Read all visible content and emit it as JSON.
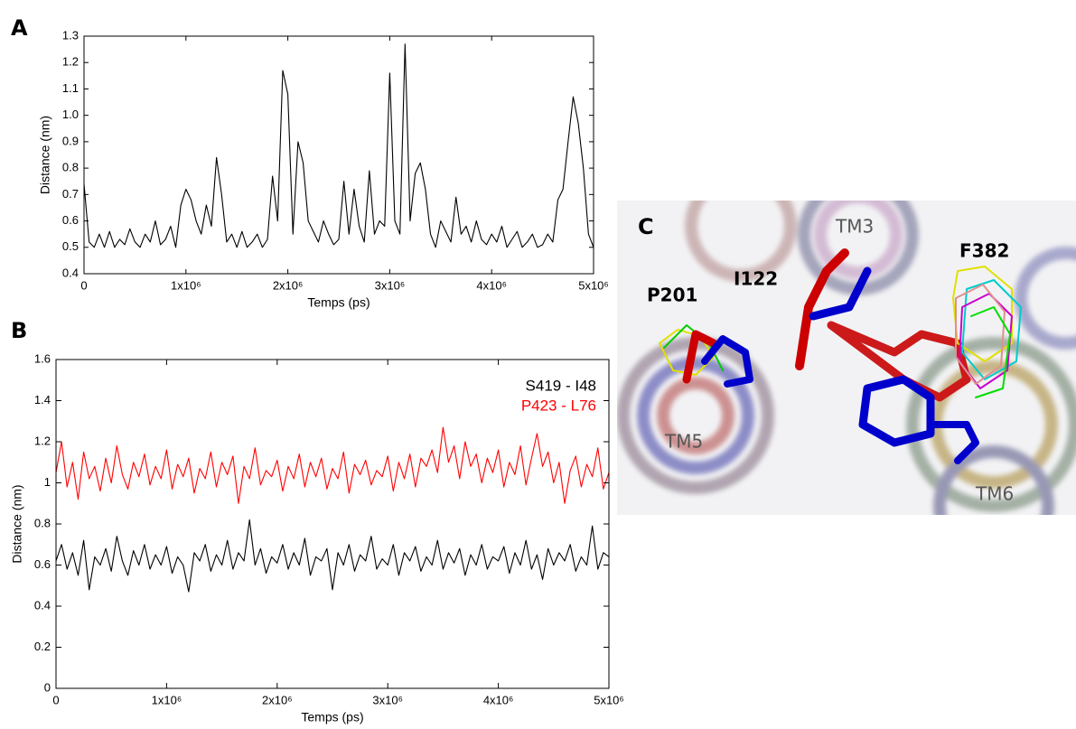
{
  "panel_labels": [
    "A",
    "B",
    "C"
  ],
  "structure": {
    "labels": [
      "TM3",
      "F382",
      "P201",
      "I122",
      "TM5",
      "TM6"
    ]
  },
  "chart_data": [
    {
      "type": "line",
      "xlabel": "Temps (ps)",
      "ylabel": "Distance (nm)",
      "xlim": [
        0,
        5000000
      ],
      "ylim": [
        0.4,
        1.3
      ],
      "xticks": [
        0,
        {
          "value": 1000000,
          "label": "1x10⁶"
        },
        {
          "value": 2000000,
          "label": "2x10⁶"
        },
        {
          "value": 3000000,
          "label": "3x10⁶"
        },
        {
          "value": 4000000,
          "label": "4x10⁶"
        },
        {
          "value": 5000000,
          "label": "5x10⁶"
        }
      ],
      "yticks": [
        0.4,
        0.5,
        0.6,
        0.7,
        0.8,
        0.9,
        {
          "value": 1,
          "label": "1.0"
        },
        1.1,
        1.2,
        1.3
      ],
      "x": [
        0,
        50000,
        100000,
        150000,
        200000,
        250000,
        300000,
        350000,
        400000,
        450000,
        500000,
        550000,
        600000,
        650000,
        700000,
        750000,
        800000,
        850000,
        900000,
        950000,
        1000000,
        1050000,
        1100000,
        1150000,
        1200000,
        1250000,
        1300000,
        1350000,
        1400000,
        1450000,
        1500000,
        1550000,
        1600000,
        1650000,
        1700000,
        1750000,
        1800000,
        1850000,
        1900000,
        1950000,
        2000000,
        2050000,
        2100000,
        2150000,
        2200000,
        2250000,
        2300000,
        2350000,
        2400000,
        2450000,
        2500000,
        2550000,
        2600000,
        2650000,
        2700000,
        2750000,
        2800000,
        2850000,
        2900000,
        2950000,
        3000000,
        3050000,
        3100000,
        3150000,
        3200000,
        3250000,
        3300000,
        3350000,
        3400000,
        3450000,
        3500000,
        3550000,
        3600000,
        3650000,
        3700000,
        3750000,
        3800000,
        3850000,
        3900000,
        3950000,
        4000000,
        4050000,
        4100000,
        4150000,
        4200000,
        4250000,
        4300000,
        4350000,
        4400000,
        4450000,
        4500000,
        4550000,
        4600000,
        4650000,
        4700000,
        4750000,
        4800000,
        4850000,
        4900000,
        4950000,
        5000000
      ],
      "series": [
        {
          "color": "#000000",
          "values": [
            0.74,
            0.52,
            0.5,
            0.55,
            0.5,
            0.56,
            0.5,
            0.53,
            0.51,
            0.57,
            0.52,
            0.5,
            0.55,
            0.52,
            0.6,
            0.51,
            0.53,
            0.58,
            0.5,
            0.66,
            0.72,
            0.68,
            0.6,
            0.55,
            0.66,
            0.58,
            0.84,
            0.7,
            0.52,
            0.55,
            0.5,
            0.56,
            0.5,
            0.52,
            0.55,
            0.5,
            0.53,
            0.77,
            0.6,
            1.17,
            1.08,
            0.55,
            0.9,
            0.82,
            0.6,
            0.56,
            0.52,
            0.6,
            0.55,
            0.51,
            0.53,
            0.75,
            0.55,
            0.72,
            0.58,
            0.52,
            0.79,
            0.55,
            0.6,
            0.58,
            1.16,
            0.6,
            0.55,
            1.27,
            0.6,
            0.78,
            0.82,
            0.72,
            0.55,
            0.5,
            0.6,
            0.56,
            0.52,
            0.69,
            0.55,
            0.58,
            0.52,
            0.6,
            0.53,
            0.51,
            0.55,
            0.52,
            0.58,
            0.5,
            0.53,
            0.56,
            0.5,
            0.52,
            0.55,
            0.5,
            0.51,
            0.55,
            0.52,
            0.68,
            0.72,
            0.9,
            1.07,
            0.97,
            0.8,
            0.55,
            0.5
          ]
        }
      ]
    },
    {
      "type": "line",
      "xlabel": "Temps (ps)",
      "ylabel": "Distance (nm)",
      "xlim": [
        0,
        5000000
      ],
      "ylim": [
        0,
        1.6
      ],
      "xticks": [
        0,
        {
          "value": 1000000,
          "label": "1x10⁶"
        },
        {
          "value": 2000000,
          "label": "2x10⁶"
        },
        {
          "value": 3000000,
          "label": "3x10⁶"
        },
        {
          "value": 4000000,
          "label": "4x10⁶"
        },
        {
          "value": 5000000,
          "label": "5x10⁶"
        }
      ],
      "yticks": [
        0,
        0.2,
        0.4,
        0.6,
        0.8,
        1,
        1.2,
        1.4,
        1.6
      ],
      "legend": "upper right",
      "x": [
        0,
        50000,
        100000,
        150000,
        200000,
        250000,
        300000,
        350000,
        400000,
        450000,
        500000,
        550000,
        600000,
        650000,
        700000,
        750000,
        800000,
        850000,
        900000,
        950000,
        1000000,
        1050000,
        1100000,
        1150000,
        1200000,
        1250000,
        1300000,
        1350000,
        1400000,
        1450000,
        1500000,
        1550000,
        1600000,
        1650000,
        1700000,
        1750000,
        1800000,
        1850000,
        1900000,
        1950000,
        2000000,
        2050000,
        2100000,
        2150000,
        2200000,
        2250000,
        2300000,
        2350000,
        2400000,
        2450000,
        2500000,
        2550000,
        2600000,
        2650000,
        2700000,
        2750000,
        2800000,
        2850000,
        2900000,
        2950000,
        3000000,
        3050000,
        3100000,
        3150000,
        3200000,
        3250000,
        3300000,
        3350000,
        3400000,
        3450000,
        3500000,
        3550000,
        3600000,
        3650000,
        3700000,
        3750000,
        3800000,
        3850000,
        3900000,
        3950000,
        4000000,
        4050000,
        4100000,
        4150000,
        4200000,
        4250000,
        4300000,
        4350000,
        4400000,
        4450000,
        4500000,
        4550000,
        4600000,
        4650000,
        4700000,
        4750000,
        4800000,
        4850000,
        4900000,
        4950000,
        5000000
      ],
      "series": [
        {
          "name": "S419 - I48",
          "color": "#000000",
          "values": [
            0.62,
            0.7,
            0.58,
            0.66,
            0.55,
            0.72,
            0.48,
            0.64,
            0.6,
            0.68,
            0.57,
            0.74,
            0.62,
            0.55,
            0.67,
            0.6,
            0.7,
            0.58,
            0.65,
            0.6,
            0.69,
            0.56,
            0.64,
            0.6,
            0.47,
            0.66,
            0.62,
            0.7,
            0.57,
            0.65,
            0.6,
            0.72,
            0.58,
            0.66,
            0.62,
            0.82,
            0.6,
            0.68,
            0.56,
            0.64,
            0.61,
            0.7,
            0.58,
            0.66,
            0.6,
            0.73,
            0.55,
            0.64,
            0.62,
            0.68,
            0.48,
            0.66,
            0.6,
            0.7,
            0.57,
            0.65,
            0.62,
            0.74,
            0.58,
            0.63,
            0.6,
            0.7,
            0.55,
            0.66,
            0.62,
            0.69,
            0.57,
            0.64,
            0.6,
            0.72,
            0.58,
            0.66,
            0.61,
            0.68,
            0.55,
            0.65,
            0.6,
            0.7,
            0.58,
            0.64,
            0.62,
            0.69,
            0.56,
            0.66,
            0.6,
            0.72,
            0.58,
            0.65,
            0.53,
            0.68,
            0.6,
            0.66,
            0.62,
            0.7,
            0.57,
            0.64,
            0.6,
            0.79,
            0.58,
            0.66,
            0.64
          ]
        },
        {
          "name": "P423 - L76",
          "color": "#ff0000",
          "values": [
            1.05,
            1.2,
            0.98,
            1.1,
            0.92,
            1.15,
            1.02,
            1.08,
            0.96,
            1.12,
            1.0,
            1.18,
            1.04,
            0.97,
            1.1,
            1.03,
            1.14,
            0.99,
            1.08,
            1.02,
            1.16,
            0.97,
            1.09,
            1.03,
            1.12,
            0.95,
            1.07,
            1.02,
            1.15,
            0.98,
            1.1,
            1.04,
            1.13,
            0.9,
            1.08,
            1.02,
            1.17,
            0.99,
            1.06,
            1.03,
            1.11,
            0.96,
            1.08,
            1.02,
            1.14,
            0.98,
            1.1,
            1.03,
            1.12,
            0.97,
            1.07,
            1.02,
            1.15,
            0.95,
            1.09,
            1.04,
            1.11,
            0.99,
            1.06,
            1.03,
            1.13,
            0.96,
            1.1,
            1.02,
            1.14,
            0.98,
            1.12,
            1.08,
            1.16,
            1.05,
            1.27,
            1.1,
            1.18,
            1.02,
            1.2,
            1.08,
            1.14,
            1.0,
            1.12,
            1.05,
            1.16,
            0.98,
            1.1,
            1.04,
            1.18,
            0.99,
            1.12,
            1.24,
            1.08,
            1.15,
            1.0,
            1.1,
            0.9,
            1.06,
            1.13,
            0.98,
            1.09,
            1.03,
            1.17,
            0.97,
            1.05
          ]
        }
      ]
    }
  ]
}
